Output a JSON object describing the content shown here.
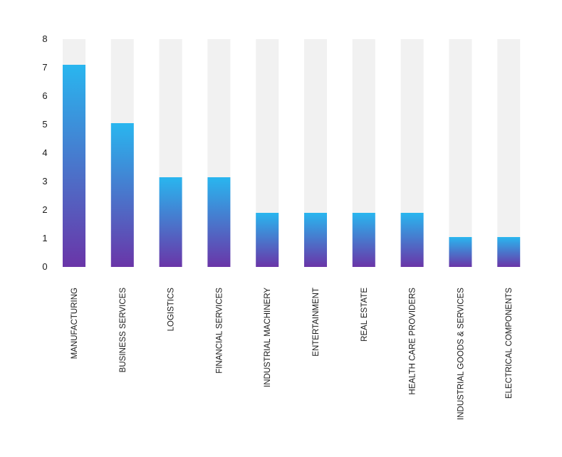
{
  "chart_data": {
    "type": "bar",
    "categories": [
      "MANUFACTURING",
      "BUSINESS SERVICES",
      "LOGISTICS",
      "FINANCIAL SERVICES",
      "INDUSTRIAL MACHINERY",
      "ENTERTAINMENT",
      "REAL ESTATE",
      "HEALTH CARE PROVIDERS",
      "INDUSTRIAL GOODS & SERVICES",
      "ELECTRICAL COMPONENTS"
    ],
    "values": [
      7.1,
      5.05,
      3.15,
      3.15,
      1.9,
      1.9,
      1.9,
      1.9,
      1.05,
      1.05
    ],
    "ylim": [
      0,
      8
    ],
    "yticks": [
      "0",
      "1",
      "2",
      "3",
      "4",
      "5",
      "6",
      "7",
      "8"
    ],
    "title": "",
    "xlabel": "",
    "ylabel": "",
    "grid": false,
    "legend": "none",
    "colors": {
      "bar_top": "#29b6ef",
      "bar_bottom": "#6a35a8",
      "track": "#f1f1f1"
    }
  }
}
